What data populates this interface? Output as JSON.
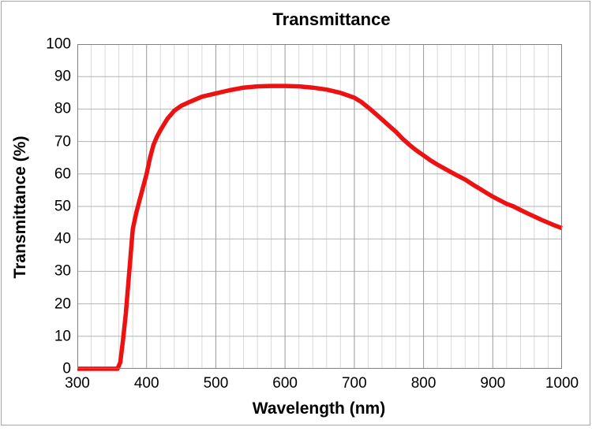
{
  "page": {
    "background_color": "#ffffff",
    "frame_border_color": "#a6a6a6"
  },
  "chart_data": {
    "type": "line",
    "title": "Transmittance",
    "xlabel": "Wavelength (nm)",
    "ylabel": "Transmittance (%)",
    "xlim": [
      300,
      1000
    ],
    "ylim": [
      0,
      100
    ],
    "x_major_tick": 100,
    "x_minor_tick": 20,
    "y_major_tick": 10,
    "x_tick_labels": [
      "300",
      "400",
      "500",
      "600",
      "700",
      "800",
      "900",
      "1000"
    ],
    "y_tick_labels": [
      "0",
      "10",
      "20",
      "30",
      "40",
      "50",
      "60",
      "70",
      "80",
      "90",
      "100"
    ],
    "grid": true,
    "legend": false,
    "colors": {
      "curve": "#ee1111",
      "grid_minor": "#d9d9d9",
      "grid_major_horizontal": "#b3b3b3",
      "grid_major_vertical": "#999999",
      "plot_border": "#808080"
    },
    "series": [
      {
        "name": "Transmittance",
        "color": "#ee1111",
        "points": [
          [
            300,
            0
          ],
          [
            310,
            0
          ],
          [
            320,
            0
          ],
          [
            330,
            0
          ],
          [
            340,
            0
          ],
          [
            350,
            0
          ],
          [
            358,
            0
          ],
          [
            362,
            2
          ],
          [
            366,
            9
          ],
          [
            370,
            17
          ],
          [
            375,
            30
          ],
          [
            380,
            43
          ],
          [
            385,
            48
          ],
          [
            390,
            52
          ],
          [
            395,
            56
          ],
          [
            400,
            60
          ],
          [
            405,
            65
          ],
          [
            410,
            69
          ],
          [
            415,
            71.5
          ],
          [
            420,
            73.5
          ],
          [
            430,
            77
          ],
          [
            440,
            79.5
          ],
          [
            450,
            81
          ],
          [
            460,
            82
          ],
          [
            480,
            83.8
          ],
          [
            500,
            84.8
          ],
          [
            520,
            85.8
          ],
          [
            540,
            86.6
          ],
          [
            560,
            87
          ],
          [
            580,
            87.1
          ],
          [
            600,
            87.1
          ],
          [
            620,
            87
          ],
          [
            640,
            86.6
          ],
          [
            660,
            86
          ],
          [
            680,
            85
          ],
          [
            700,
            83.5
          ],
          [
            710,
            82.2
          ],
          [
            720,
            80.5
          ],
          [
            730,
            78.7
          ],
          [
            740,
            76.8
          ],
          [
            750,
            74.9
          ],
          [
            760,
            73
          ],
          [
            770,
            70.8
          ],
          [
            780,
            68.9
          ],
          [
            790,
            67.2
          ],
          [
            800,
            65.7
          ],
          [
            810,
            64.2
          ],
          [
            820,
            62.9
          ],
          [
            830,
            61.7
          ],
          [
            840,
            60.5
          ],
          [
            850,
            59.4
          ],
          [
            860,
            58.3
          ],
          [
            870,
            56.9
          ],
          [
            880,
            55.6
          ],
          [
            890,
            54.3
          ],
          [
            900,
            53
          ],
          [
            910,
            51.9
          ],
          [
            920,
            50.8
          ],
          [
            930,
            50
          ],
          [
            940,
            48.9
          ],
          [
            950,
            47.9
          ],
          [
            960,
            46.9
          ],
          [
            970,
            45.9
          ],
          [
            980,
            45
          ],
          [
            990,
            44.1
          ],
          [
            1000,
            43.3
          ]
        ]
      }
    ]
  }
}
